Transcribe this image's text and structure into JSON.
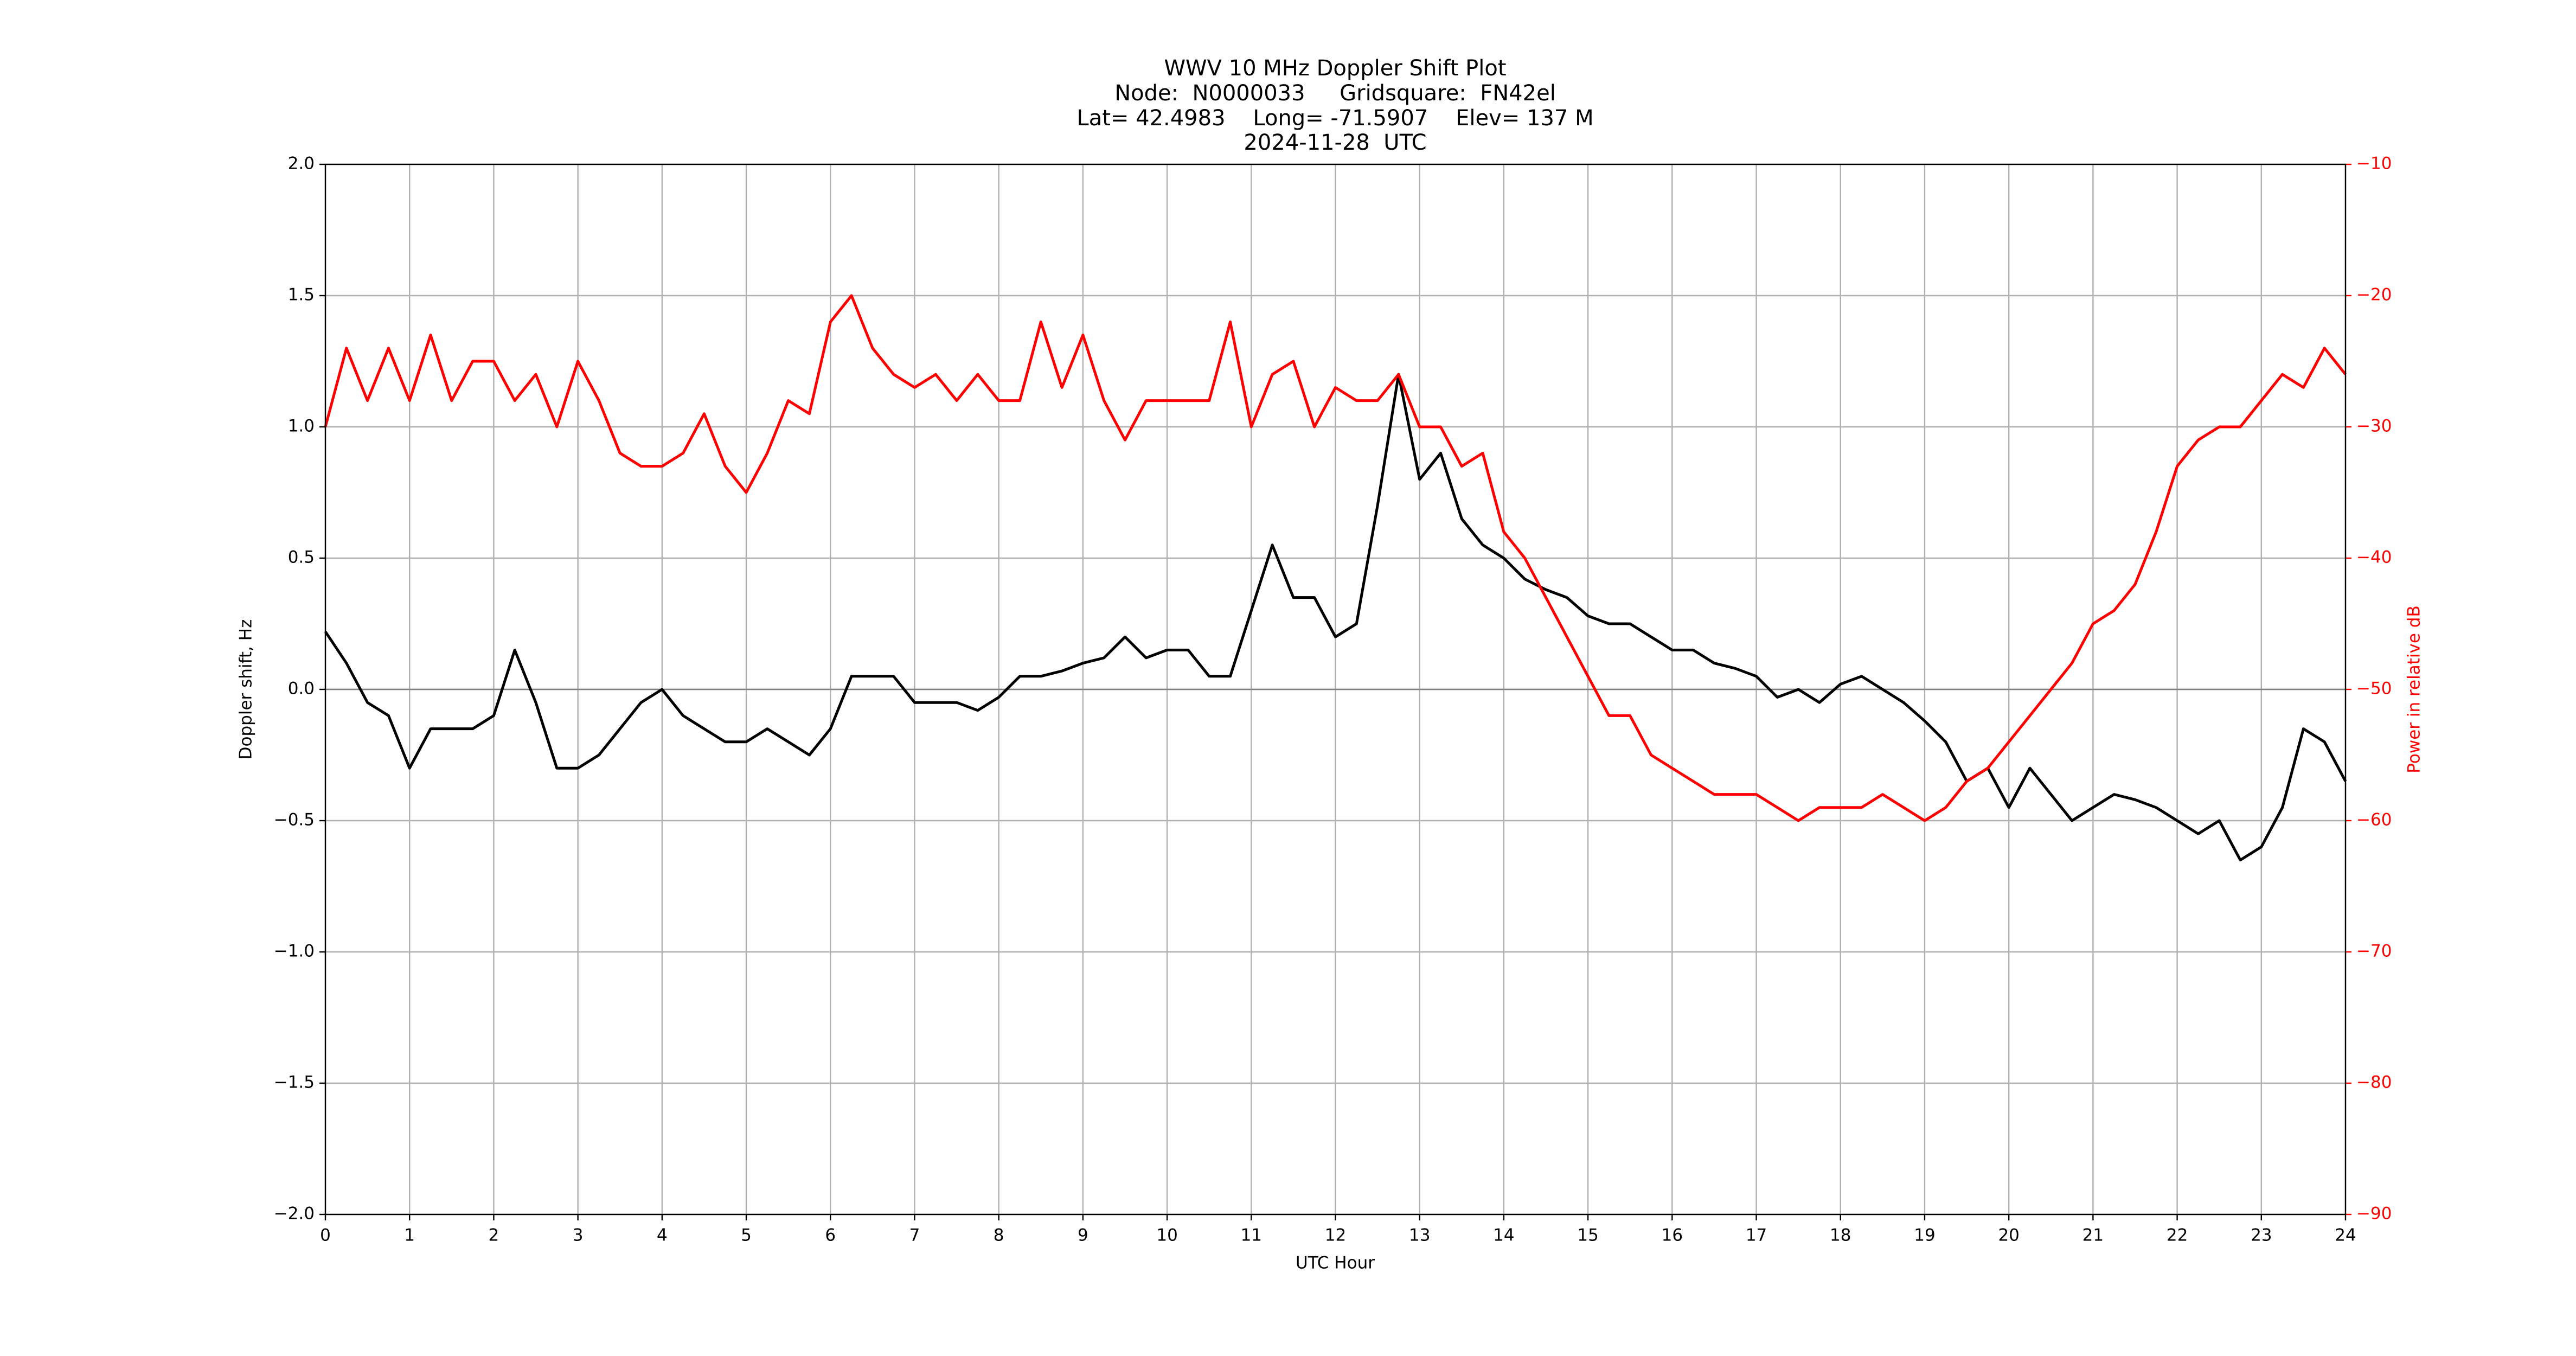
{
  "chart_data": {
    "type": "line",
    "title": [
      "WWV 10 MHz Doppler Shift Plot",
      "Node:  N0000033     Gridsquare:  FN42el",
      "Lat= 42.4983    Long= -71.5907    Elev= 137 M",
      "2024-11-28  UTC"
    ],
    "xlabel": "UTC Hour",
    "ylabel": "Doppler shift, Hz",
    "y2label": "Power in relative dB",
    "x": [
      0,
      0.25,
      0.5,
      0.75,
      1,
      1.25,
      1.5,
      1.75,
      2,
      2.25,
      2.5,
      2.75,
      3,
      3.25,
      3.5,
      3.75,
      4,
      4.25,
      4.5,
      4.75,
      5,
      5.25,
      5.5,
      5.75,
      6,
      6.25,
      6.5,
      6.75,
      7,
      7.25,
      7.5,
      7.75,
      8,
      8.25,
      8.5,
      8.75,
      9,
      9.25,
      9.5,
      9.75,
      10,
      10.25,
      10.5,
      10.75,
      11,
      11.25,
      11.5,
      11.75,
      12,
      12.25,
      12.5,
      12.75,
      13,
      13.25,
      13.5,
      13.75,
      14,
      14.25,
      14.5,
      14.75,
      15,
      15.25,
      15.5,
      15.75,
      16,
      16.25,
      16.5,
      16.75,
      17,
      17.25,
      17.5,
      17.75,
      18,
      18.25,
      18.5,
      18.75,
      19,
      19.25,
      19.5,
      19.75,
      20,
      20.25,
      20.5,
      20.75,
      21,
      21.25,
      21.5,
      21.75,
      22,
      22.25,
      22.5,
      22.75,
      23,
      23.25,
      23.5,
      23.75,
      24
    ],
    "series": [
      {
        "name": "Doppler",
        "color": "#000000",
        "axis": "y",
        "values": [
          0.22,
          0.1,
          -0.05,
          -0.1,
          -0.3,
          -0.15,
          -0.15,
          -0.15,
          -0.1,
          0.15,
          -0.05,
          -0.3,
          -0.3,
          -0.25,
          -0.15,
          -0.05,
          0.0,
          -0.1,
          -0.15,
          -0.2,
          -0.2,
          -0.15,
          -0.2,
          -0.25,
          -0.15,
          0.05,
          0.05,
          0.05,
          -0.05,
          -0.05,
          -0.05,
          -0.08,
          -0.03,
          0.05,
          0.05,
          0.07,
          0.1,
          0.12,
          0.2,
          0.12,
          0.15,
          0.15,
          0.05,
          0.05,
          0.3,
          0.55,
          0.35,
          0.35,
          0.2,
          0.25,
          0.7,
          1.2,
          0.8,
          0.9,
          0.65,
          0.55,
          0.5,
          0.42,
          0.38,
          0.35,
          0.28,
          0.25,
          0.25,
          0.2,
          0.15,
          0.15,
          0.1,
          0.08,
          0.05,
          -0.03,
          0.0,
          -0.05,
          0.02,
          0.05,
          0.0,
          -0.05,
          -0.12,
          -0.2,
          -0.35,
          -0.3,
          -0.45,
          -0.3,
          -0.4,
          -0.5,
          -0.45,
          -0.4,
          -0.42,
          -0.45,
          -0.5,
          -0.55,
          -0.5,
          -0.65,
          -0.6,
          -0.45,
          -0.15,
          -0.2,
          -0.35
        ]
      },
      {
        "name": "Power",
        "color": "#ff0000",
        "axis": "y2",
        "values": [
          -30,
          -24,
          -28,
          -24,
          -28,
          -23,
          -28,
          -25,
          -25,
          -28,
          -26,
          -30,
          -25,
          -28,
          -32,
          -33,
          -33,
          -32,
          -29,
          -33,
          -35,
          -32,
          -28,
          -29,
          -22,
          -20,
          -24,
          -26,
          -27,
          -26,
          -28,
          -26,
          -28,
          -28,
          -22,
          -27,
          -23,
          -28,
          -31,
          -28,
          -28,
          -28,
          -28,
          -22,
          -30,
          -26,
          -25,
          -30,
          -27,
          -28,
          -28,
          -26,
          -30,
          -30,
          -33,
          -32,
          -38,
          -40,
          -43,
          -46,
          -49,
          -52,
          -52,
          -55,
          -56,
          -57,
          -58,
          -58,
          -58,
          -59,
          -60,
          -59,
          -59,
          -59,
          -58,
          -59,
          -60,
          -59,
          -57,
          -56,
          -54,
          -52,
          -50,
          -48,
          -45,
          -44,
          -42,
          -38,
          -33,
          -31,
          -30,
          -30,
          -28,
          -26,
          -27,
          -24,
          -26
        ]
      }
    ],
    "xlim": [
      0,
      24
    ],
    "xticks": [
      0,
      1,
      2,
      3,
      4,
      5,
      6,
      7,
      8,
      9,
      10,
      11,
      12,
      13,
      14,
      15,
      16,
      17,
      18,
      19,
      20,
      21,
      22,
      23,
      24
    ],
    "ylim": [
      -2,
      2
    ],
    "yticks": [
      {
        "value": -2,
        "label": "−2.0"
      },
      {
        "value": -1.5,
        "label": "−1.5"
      },
      {
        "value": -1,
        "label": "−1.0"
      },
      {
        "value": -0.5,
        "label": "−0.5"
      },
      {
        "value": 0,
        "label": "0.0"
      },
      {
        "value": 0.5,
        "label": "0.5"
      },
      {
        "value": 1,
        "label": "1.0"
      },
      {
        "value": 1.5,
        "label": "1.5"
      },
      {
        "value": 2,
        "label": "2.0"
      }
    ],
    "y2lim": [
      -90,
      -10
    ],
    "y2ticks": [
      {
        "value": -90,
        "label": "−90"
      },
      {
        "value": -80,
        "label": "−80"
      },
      {
        "value": -70,
        "label": "−70"
      },
      {
        "value": -60,
        "label": "−60"
      },
      {
        "value": -50,
        "label": "−50"
      },
      {
        "value": -40,
        "label": "−40"
      },
      {
        "value": -30,
        "label": "−30"
      },
      {
        "value": -20,
        "label": "−20"
      },
      {
        "value": -10,
        "label": "−10"
      }
    ],
    "y2color": "#ff0000",
    "grid": true,
    "zero_line": true
  }
}
